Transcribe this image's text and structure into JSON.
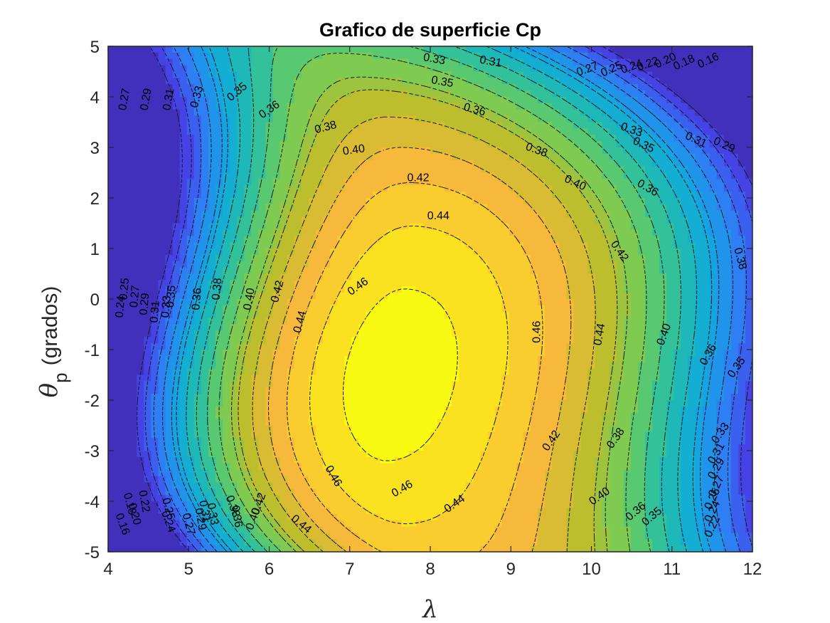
{
  "chart_data": {
    "type": "heatmap",
    "subtype": "filled-contour",
    "title": "Grafico de superficie Cp",
    "xlabel": "λ",
    "ylabel_symbol": "θ",
    "ylabel_subscript": "p",
    "ylabel_suffix": "(grados)",
    "xlim": [
      4,
      12
    ],
    "ylim": [
      -5,
      5
    ],
    "x_ticks": [
      4,
      5,
      6,
      7,
      8,
      9,
      10,
      11,
      12
    ],
    "y_ticks": [
      -5,
      -4,
      -3,
      -2,
      -1,
      0,
      1,
      2,
      3,
      4,
      5
    ],
    "x_tick_labels": [
      "4",
      "5",
      "6",
      "7",
      "8",
      "9",
      "10",
      "11",
      "12"
    ],
    "y_tick_labels": [
      "-5",
      "-4",
      "-3",
      "-2",
      "-1",
      "0",
      "1",
      "2",
      "3",
      "4",
      "5"
    ],
    "colormap": "parula",
    "value_range": [
      0.14,
      0.47
    ],
    "peak": {
      "lambda": 7.6,
      "theta": -1.5,
      "cp": 0.47
    },
    "contour_levels": [
      0.16,
      0.18,
      0.2,
      0.22,
      0.24,
      0.25,
      0.27,
      0.29,
      0.31,
      0.33,
      0.35,
      0.36,
      0.38,
      0.4,
      0.42,
      0.44,
      0.46
    ],
    "contour_labels": [
      {
        "text": "0.46",
        "x": 7.1,
        "y": 0.25,
        "rot": -35
      },
      {
        "text": "0.46",
        "x": 9.32,
        "y": -0.65,
        "rot": -90
      },
      {
        "text": "0.46",
        "x": 6.8,
        "y": -3.5,
        "rot": 60
      },
      {
        "text": "0.46",
        "x": 7.65,
        "y": -3.75,
        "rot": -30
      },
      {
        "text": "0.44",
        "x": 8.1,
        "y": 1.65,
        "rot": 0
      },
      {
        "text": "0.44",
        "x": 6.38,
        "y": -0.45,
        "rot": -75
      },
      {
        "text": "0.44",
        "x": 10.1,
        "y": -0.7,
        "rot": -80
      },
      {
        "text": "0.44",
        "x": 8.3,
        "y": -4.05,
        "rot": -35
      },
      {
        "text": "0.44",
        "x": 6.4,
        "y": -4.45,
        "rot": 40
      },
      {
        "text": "0.42",
        "x": 7.85,
        "y": 2.4,
        "rot": 0
      },
      {
        "text": "0.42",
        "x": 6.1,
        "y": 0.15,
        "rot": -75
      },
      {
        "text": "0.42",
        "x": 10.35,
        "y": 0.95,
        "rot": 55
      },
      {
        "text": "0.42",
        "x": 9.5,
        "y": -2.8,
        "rot": -55
      },
      {
        "text": "0.42",
        "x": 5.87,
        "y": -4.05,
        "rot": -70
      },
      {
        "text": "0.40",
        "x": 7.05,
        "y": 2.95,
        "rot": -8
      },
      {
        "text": "0.40",
        "x": 9.8,
        "y": 2.3,
        "rot": 25
      },
      {
        "text": "0.40",
        "x": 5.75,
        "y": 0.0,
        "rot": -80
      },
      {
        "text": "0.40",
        "x": 10.9,
        "y": -0.7,
        "rot": -70
      },
      {
        "text": "0.40",
        "x": 10.1,
        "y": -3.9,
        "rot": -35
      },
      {
        "text": "0.40",
        "x": 5.8,
        "y": -4.35,
        "rot": -70
      },
      {
        "text": "0.38",
        "x": 6.7,
        "y": 3.4,
        "rot": -15
      },
      {
        "text": "0.38",
        "x": 9.32,
        "y": 2.95,
        "rot": 20
      },
      {
        "text": "0.38",
        "x": 5.35,
        "y": 0.2,
        "rot": -85
      },
      {
        "text": "0.38",
        "x": 11.85,
        "y": 0.8,
        "rot": 75
      },
      {
        "text": "0.38",
        "x": 10.3,
        "y": -2.75,
        "rot": -55
      },
      {
        "text": "0.38",
        "x": 5.55,
        "y": -4.1,
        "rot": 70
      },
      {
        "text": "0.36",
        "x": 6.0,
        "y": 3.75,
        "rot": -35
      },
      {
        "text": "0.36",
        "x": 8.55,
        "y": 3.75,
        "rot": 15
      },
      {
        "text": "0.36",
        "x": 10.7,
        "y": 2.2,
        "rot": 30
      },
      {
        "text": "0.36",
        "x": 5.1,
        "y": 0.0,
        "rot": -85
      },
      {
        "text": "0.36",
        "x": 11.45,
        "y": -1.1,
        "rot": -60
      },
      {
        "text": "0.36",
        "x": 10.55,
        "y": -4.2,
        "rot": -40
      },
      {
        "text": "0.36",
        "x": 5.6,
        "y": -4.3,
        "rot": 80
      },
      {
        "text": "0.35",
        "x": 5.6,
        "y": 4.1,
        "rot": -40
      },
      {
        "text": "0.35",
        "x": 8.15,
        "y": 4.3,
        "rot": 10
      },
      {
        "text": "0.35",
        "x": 10.65,
        "y": 3.05,
        "rot": 25
      },
      {
        "text": "0.35",
        "x": 4.78,
        "y": 0.05,
        "rot": -85
      },
      {
        "text": "0.35",
        "x": 11.8,
        "y": -1.35,
        "rot": -55
      },
      {
        "text": "0.35",
        "x": 10.75,
        "y": -4.3,
        "rot": -40
      },
      {
        "text": "0.33",
        "x": 8.05,
        "y": 4.75,
        "rot": 10
      },
      {
        "text": "0.33",
        "x": 5.1,
        "y": 4.0,
        "rot": -75
      },
      {
        "text": "0.33",
        "x": 10.5,
        "y": 3.35,
        "rot": 20
      },
      {
        "text": "0.33",
        "x": 4.72,
        "y": -0.15,
        "rot": -85
      },
      {
        "text": "0.33",
        "x": 11.6,
        "y": -2.65,
        "rot": -55
      },
      {
        "text": "0.33",
        "x": 5.3,
        "y": -4.25,
        "rot": 80
      },
      {
        "text": "0.31",
        "x": 8.75,
        "y": 4.7,
        "rot": 10
      },
      {
        "text": "0.31",
        "x": 4.75,
        "y": 3.95,
        "rot": -80
      },
      {
        "text": "0.31",
        "x": 11.3,
        "y": 3.15,
        "rot": 25
      },
      {
        "text": "0.31",
        "x": 4.58,
        "y": -0.25,
        "rot": -85
      },
      {
        "text": "0.31",
        "x": 11.55,
        "y": -3.05,
        "rot": -60
      },
      {
        "text": "0.31",
        "x": 5.2,
        "y": -4.2,
        "rot": 80
      },
      {
        "text": "0.29",
        "x": 4.47,
        "y": 3.95,
        "rot": -80
      },
      {
        "text": "0.29",
        "x": 11.65,
        "y": 3.05,
        "rot": 25
      },
      {
        "text": "0.29",
        "x": 4.45,
        "y": -0.1,
        "rot": -85
      },
      {
        "text": "0.29",
        "x": 11.55,
        "y": -3.35,
        "rot": -60
      },
      {
        "text": "0.29",
        "x": 5.15,
        "y": -4.35,
        "rot": 80
      },
      {
        "text": "0.27",
        "x": 4.2,
        "y": 3.95,
        "rot": -80
      },
      {
        "text": "0.27",
        "x": 9.95,
        "y": 4.55,
        "rot": -20
      },
      {
        "text": "0.27",
        "x": 4.33,
        "y": 0.05,
        "rot": -85
      },
      {
        "text": "0.27",
        "x": 11.55,
        "y": -3.7,
        "rot": -65
      },
      {
        "text": "0.27",
        "x": 5.0,
        "y": -4.45,
        "rot": 75
      },
      {
        "text": "0.25",
        "x": 10.25,
        "y": 4.55,
        "rot": -25
      },
      {
        "text": "0.25",
        "x": 4.2,
        "y": 0.2,
        "rot": -85
      },
      {
        "text": "0.25",
        "x": 11.5,
        "y": -3.95,
        "rot": -65
      },
      {
        "text": "0.25",
        "x": 4.75,
        "y": -4.15,
        "rot": 75
      },
      {
        "text": "0.24",
        "x": 10.5,
        "y": 4.6,
        "rot": -20
      },
      {
        "text": "0.24",
        "x": 4.15,
        "y": -0.15,
        "rot": -85
      },
      {
        "text": "0.24",
        "x": 11.5,
        "y": -4.2,
        "rot": -65
      },
      {
        "text": "0.24",
        "x": 4.75,
        "y": -4.4,
        "rot": 70
      },
      {
        "text": "0.22",
        "x": 10.7,
        "y": 4.65,
        "rot": -20
      },
      {
        "text": "0.22",
        "x": 11.5,
        "y": -4.5,
        "rot": -65
      },
      {
        "text": "0.22",
        "x": 4.45,
        "y": -4.0,
        "rot": 80
      },
      {
        "text": "0.20",
        "x": 10.92,
        "y": 4.72,
        "rot": -25
      },
      {
        "text": "0.20",
        "x": 4.33,
        "y": -4.25,
        "rot": 75
      },
      {
        "text": "0.18",
        "x": 11.15,
        "y": 4.68,
        "rot": -25
      },
      {
        "text": "0.18",
        "x": 4.27,
        "y": -4.05,
        "rot": 75
      },
      {
        "text": "0.16",
        "x": 11.45,
        "y": 4.72,
        "rot": -25
      },
      {
        "text": "0.16",
        "x": 4.18,
        "y": -4.45,
        "rot": 70
      }
    ]
  }
}
